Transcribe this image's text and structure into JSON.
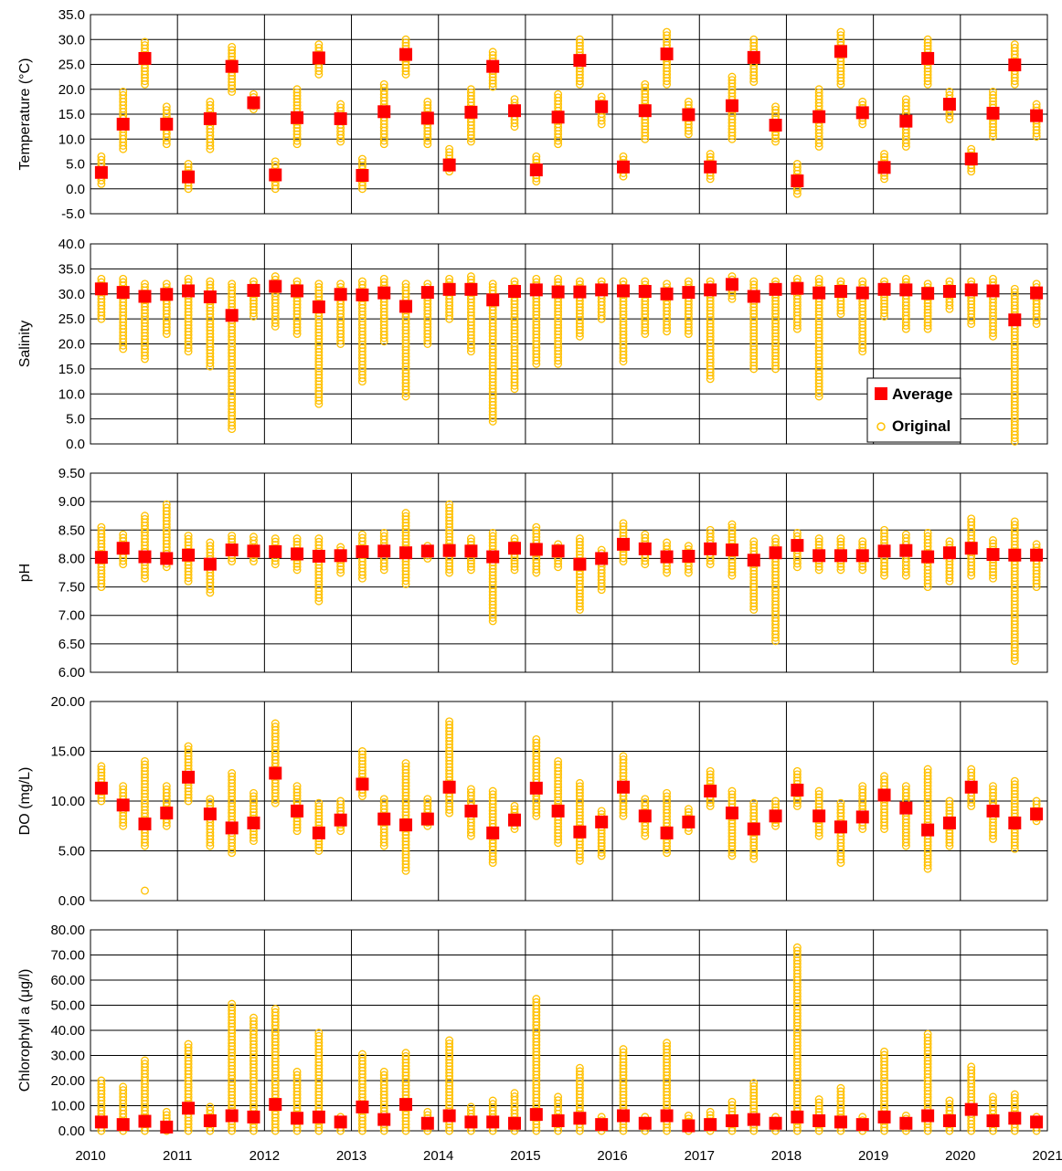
{
  "legend": {
    "average_label": "Average",
    "original_label": "Original",
    "average_color": "#ff0000",
    "original_color": "#ffc000",
    "placement": "right, inside Salinity panel"
  },
  "chart_data": {
    "type": "scatter",
    "x_ticks": [
      "2010",
      "2011",
      "2012",
      "2013",
      "2014",
      "2015",
      "2016",
      "2017",
      "2018",
      "2019",
      "2020",
      "2021"
    ],
    "seasons_per_year": 4,
    "panels": [
      {
        "ylabel": "Temperature (°C)",
        "ylim": [
          -5,
          35
        ],
        "yticks": [
          "-5.0",
          "0.0",
          "5.0",
          "10.0",
          "15.0",
          "20.0",
          "25.0",
          "30.0",
          "35.0"
        ],
        "average": [
          3.3,
          13.0,
          26.2,
          13.0,
          2.4,
          14.1,
          24.6,
          17.3,
          2.8,
          14.3,
          26.3,
          14.1,
          2.7,
          15.5,
          27.0,
          14.2,
          4.8,
          15.4,
          24.6,
          15.7,
          3.8,
          14.4,
          25.8,
          16.5,
          4.4,
          15.7,
          27.1,
          14.9,
          4.4,
          16.7,
          26.4,
          12.8,
          1.6,
          14.5,
          27.6,
          15.3,
          4.3,
          13.6,
          26.2,
          17.0,
          6.0,
          15.2,
          24.9,
          14.7
        ],
        "original_min": [
          1,
          8,
          21,
          9,
          0,
          8,
          19.5,
          16,
          0,
          9,
          23,
          9.5,
          0,
          9,
          23,
          9,
          3.5,
          9.5,
          20.5,
          12.5,
          1.5,
          9,
          21,
          13,
          2.5,
          10,
          21,
          11,
          2,
          10,
          21.5,
          9.5,
          -1,
          8.5,
          21,
          13,
          2,
          8.5,
          21,
          14,
          3.5,
          10.5,
          21,
          10.5
        ],
        "original_max": [
          6.5,
          19.5,
          29.5,
          16.5,
          5,
          17.5,
          28.5,
          19,
          5.5,
          20,
          29,
          17,
          6,
          21,
          30,
          17.5,
          8,
          20,
          27.5,
          18,
          6.5,
          19,
          30,
          18.5,
          6.5,
          21,
          31.5,
          17.5,
          7,
          22.5,
          30,
          16.5,
          5,
          20,
          31.5,
          17.5,
          7,
          18,
          30,
          19.5,
          8,
          19.5,
          29,
          17
        ],
        "outliers": []
      },
      {
        "ylabel": "Salinity",
        "ylim": [
          0,
          40
        ],
        "yticks": [
          "0.0",
          "5.0",
          "10.0",
          "15.0",
          "20.0",
          "25.0",
          "30.0",
          "35.0",
          "40.0"
        ],
        "average": [
          31.0,
          30.3,
          29.5,
          29.9,
          30.6,
          29.4,
          25.7,
          30.7,
          31.5,
          30.6,
          27.4,
          29.9,
          29.8,
          30.2,
          27.5,
          30.3,
          30.9,
          30.9,
          28.8,
          30.5,
          30.8,
          30.4,
          30.4,
          30.8,
          30.6,
          30.5,
          30.0,
          30.3,
          30.8,
          31.9,
          29.5,
          30.9,
          31.1,
          30.2,
          30.5,
          30.2,
          30.9,
          30.8,
          30.1,
          30.5,
          30.8,
          30.6,
          24.8,
          30.2
        ],
        "original_min": [
          25,
          19,
          17,
          22,
          18.5,
          15.5,
          3,
          25.5,
          23.5,
          22,
          8,
          20,
          12.5,
          20.5,
          9.5,
          20,
          25,
          18.5,
          4.5,
          11,
          16,
          16,
          21.5,
          25,
          16.5,
          22,
          22.5,
          22,
          13,
          29,
          15,
          15,
          23,
          9.5,
          26,
          18.5,
          25.5,
          23,
          23,
          27,
          24,
          21.5,
          0.5,
          24
        ],
        "original_max": [
          33,
          33,
          32,
          32,
          33,
          32.5,
          32,
          32.5,
          33.5,
          32.5,
          32,
          32,
          32.5,
          33,
          32,
          32,
          33,
          33.5,
          32,
          32.5,
          33,
          33,
          32.5,
          32.5,
          32.5,
          32.5,
          32,
          32.5,
          32.5,
          33.5,
          32.5,
          32.5,
          33,
          33,
          32.5,
          32.5,
          32.5,
          33,
          32,
          32.5,
          32.5,
          33,
          31,
          32
        ],
        "outliers": []
      },
      {
        "ylabel": "pH",
        "ylim": [
          6.0,
          9.5
        ],
        "yticks": [
          "6.00",
          "6.50",
          "7.00",
          "7.50",
          "8.00",
          "8.50",
          "9.00",
          "9.50"
        ],
        "average": [
          8.02,
          8.18,
          8.03,
          8.0,
          8.06,
          7.9,
          8.15,
          8.13,
          8.12,
          8.08,
          8.04,
          8.05,
          8.12,
          8.13,
          8.1,
          8.13,
          8.14,
          8.13,
          8.03,
          8.18,
          8.16,
          8.13,
          7.9,
          8.0,
          8.25,
          8.17,
          8.03,
          8.04,
          8.17,
          8.15,
          7.97,
          8.1,
          8.23,
          8.05,
          8.05,
          8.05,
          8.13,
          8.14,
          8.03,
          8.1,
          8.18,
          8.07,
          8.06,
          8.06
        ],
        "original_min": [
          7.5,
          7.9,
          7.65,
          7.85,
          7.6,
          7.4,
          7.95,
          7.95,
          7.9,
          7.8,
          7.25,
          7.75,
          7.65,
          7.8,
          7.55,
          8.0,
          7.75,
          7.8,
          6.9,
          7.8,
          7.75,
          7.85,
          7.1,
          7.45,
          7.95,
          7.9,
          7.75,
          7.75,
          7.9,
          7.7,
          7.1,
          6.55,
          7.85,
          7.8,
          7.8,
          7.8,
          7.7,
          7.7,
          7.5,
          7.6,
          7.7,
          7.65,
          6.2,
          7.5
        ],
        "original_max": [
          8.55,
          8.42,
          8.75,
          8.95,
          8.4,
          8.28,
          8.4,
          8.38,
          8.35,
          8.35,
          8.35,
          8.2,
          8.42,
          8.45,
          8.8,
          8.22,
          8.95,
          8.35,
          8.45,
          8.35,
          8.55,
          8.25,
          8.35,
          8.15,
          8.62,
          8.42,
          8.28,
          8.22,
          8.5,
          8.6,
          8.3,
          8.35,
          8.45,
          8.35,
          8.35,
          8.3,
          8.5,
          8.42,
          8.45,
          8.3,
          8.7,
          8.32,
          8.65,
          8.25
        ],
        "outliers": []
      },
      {
        "ylabel": "DO (mg/L)",
        "ylim": [
          0,
          20
        ],
        "yticks": [
          "0.00",
          "5.00",
          "10.00",
          "15.00",
          "20.00"
        ],
        "average": [
          11.3,
          9.6,
          7.7,
          8.8,
          12.4,
          8.7,
          7.3,
          7.8,
          12.8,
          9.0,
          6.8,
          8.1,
          11.7,
          8.2,
          7.6,
          8.2,
          11.4,
          9.0,
          6.8,
          8.1,
          11.3,
          9.0,
          6.9,
          7.9,
          11.4,
          8.5,
          6.8,
          7.9,
          11.0,
          8.8,
          7.2,
          8.5,
          11.1,
          8.5,
          7.4,
          8.4,
          10.6,
          9.3,
          7.1,
          7.8,
          11.4,
          9.0,
          7.8,
          8.7
        ],
        "original_min": [
          10,
          7.5,
          5.5,
          7.5,
          10,
          5.5,
          4.8,
          6,
          9.8,
          7,
          5,
          7,
          10.5,
          5.5,
          3,
          7.5,
          8.8,
          6.5,
          3.8,
          7.2,
          8.5,
          5.8,
          4,
          4.5,
          8.5,
          6.5,
          4.8,
          7,
          9.5,
          4.5,
          4.2,
          7.5,
          9.5,
          6.5,
          3.8,
          7.2,
          7.2,
          5.5,
          3.2,
          5.5,
          9.5,
          6.2,
          5.2,
          8
        ],
        "original_max": [
          13.5,
          11.5,
          14,
          11.5,
          15.5,
          10.2,
          12.8,
          10.8,
          17.8,
          11.5,
          9.8,
          10,
          15,
          10.2,
          13.8,
          10.2,
          18,
          11.2,
          11,
          9.5,
          16.2,
          14,
          11.8,
          9,
          14.5,
          10.2,
          10.8,
          9.2,
          13,
          11,
          9.8,
          10,
          13,
          11,
          9.8,
          11.5,
          12.5,
          11.5,
          13.2,
          10,
          13.2,
          11.5,
          12,
          10
        ],
        "outliers": [
          {
            "season": 2,
            "value": 1.0
          }
        ]
      },
      {
        "ylabel": "Chlorophyll a (μg/l)",
        "ylim": [
          0,
          80
        ],
        "yticks": [
          "0.00",
          "10.00",
          "20.00",
          "30.00",
          "40.00",
          "50.00",
          "60.00",
          "70.00",
          "80.00"
        ],
        "average": [
          3.5,
          2.5,
          3.8,
          1.5,
          9.0,
          4.0,
          6.0,
          5.5,
          10.5,
          5.0,
          5.5,
          3.5,
          9.5,
          4.5,
          10.5,
          3.0,
          6.0,
          3.5,
          3.5,
          3.0,
          6.5,
          4.0,
          5.0,
          2.5,
          6.0,
          3.0,
          6.0,
          2.0,
          2.5,
          4.0,
          4.5,
          3.0,
          5.5,
          4.0,
          3.5,
          2.5,
          5.5,
          3.0,
          6.0,
          4.0,
          8.5,
          4.0,
          5.0,
          3.5
        ],
        "original_min": [
          0,
          0,
          0,
          0,
          0,
          0,
          0,
          0,
          0,
          0,
          0,
          0,
          0,
          0,
          0,
          0,
          0,
          0,
          0,
          0,
          0,
          0,
          0,
          0,
          0,
          0,
          0,
          0,
          0,
          0,
          0,
          0,
          0,
          0,
          0,
          0,
          0,
          0,
          0,
          0,
          0,
          0,
          0,
          0
        ],
        "original_max": [
          20,
          17.5,
          28,
          7.5,
          34.5,
          9.5,
          50.5,
          45,
          48.5,
          23.5,
          39,
          5.5,
          30.5,
          23.5,
          31,
          7.5,
          36,
          9.5,
          12,
          15,
          52.5,
          13.5,
          25,
          5.5,
          32.5,
          5.5,
          35,
          6,
          7.5,
          11.5,
          19,
          5.5,
          73,
          12.5,
          17,
          5.5,
          31.5,
          6,
          38.5,
          12,
          25.5,
          13.5,
          14.5,
          5.5
        ],
        "outliers": []
      }
    ]
  }
}
